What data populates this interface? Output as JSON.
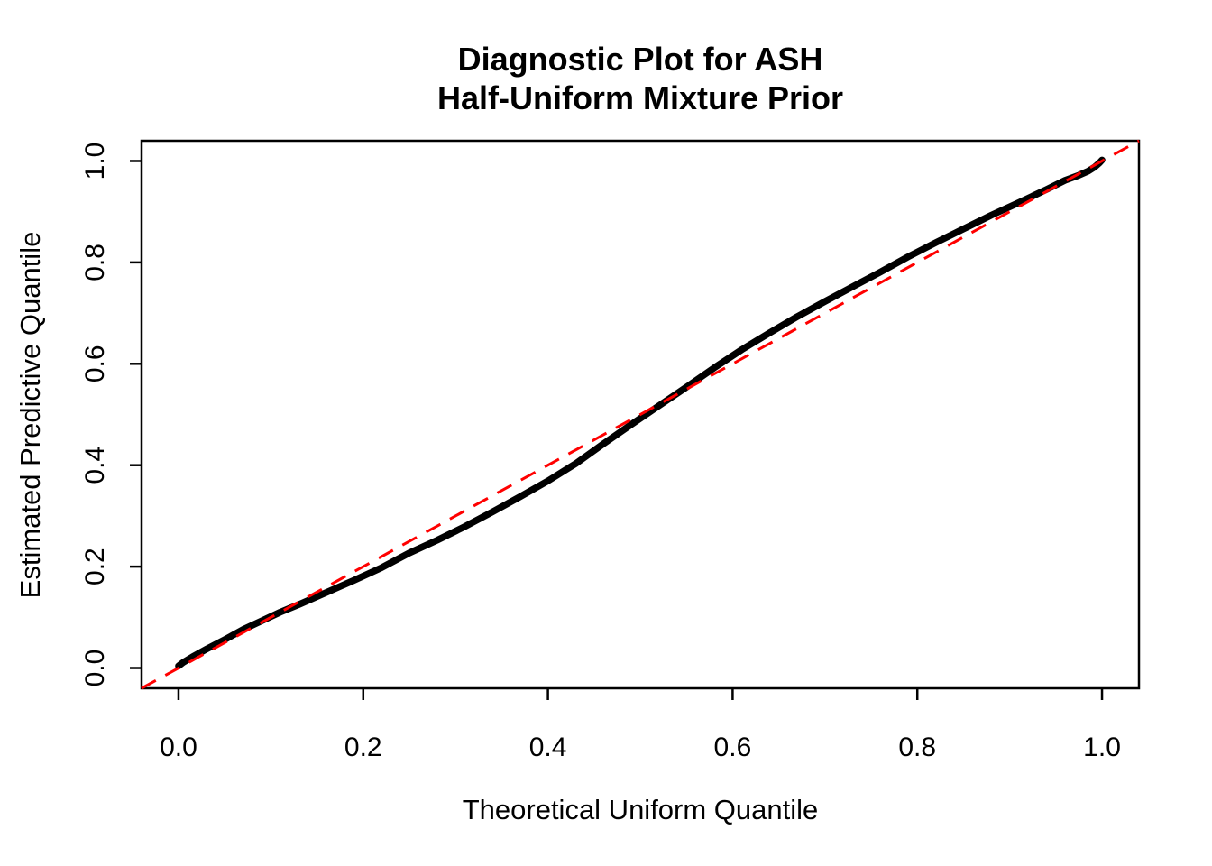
{
  "chart_data": {
    "type": "scatter",
    "title": "Diagnostic Plot for ASH\nHalf-Uniform Mixture Prior",
    "title_lines": [
      "Diagnostic Plot for ASH",
      "Half-Uniform Mixture Prior"
    ],
    "xlabel": "Theoretical Uniform Quantile",
    "ylabel": "Estimated Predictive Quantile",
    "xlim": [
      -0.04,
      1.04
    ],
    "ylim": [
      -0.04,
      1.04
    ],
    "grid": false,
    "legend": "none",
    "xticks": {
      "values": [
        0.0,
        0.2,
        0.4,
        0.6,
        0.8,
        1.0
      ],
      "labels": [
        "0.0",
        "0.2",
        "0.4",
        "0.6",
        "0.8",
        "1.0"
      ]
    },
    "yticks": {
      "values": [
        0.0,
        0.2,
        0.4,
        0.6,
        0.8,
        1.0
      ],
      "labels": [
        "0.0",
        "0.2",
        "0.4",
        "0.6",
        "0.8",
        "1.0"
      ]
    },
    "series": [
      {
        "name": "estimated-predictive-quantiles",
        "style": "thick-point-band",
        "color": "#000000",
        "points": [
          [
            0.0,
            0.004
          ],
          [
            0.005,
            0.011
          ],
          [
            0.015,
            0.022
          ],
          [
            0.03,
            0.037
          ],
          [
            0.05,
            0.056
          ],
          [
            0.07,
            0.076
          ],
          [
            0.09,
            0.093
          ],
          [
            0.11,
            0.11
          ],
          [
            0.13,
            0.125
          ],
          [
            0.16,
            0.149
          ],
          [
            0.19,
            0.173
          ],
          [
            0.22,
            0.198
          ],
          [
            0.25,
            0.227
          ],
          [
            0.28,
            0.252
          ],
          [
            0.31,
            0.279
          ],
          [
            0.34,
            0.308
          ],
          [
            0.37,
            0.338
          ],
          [
            0.4,
            0.369
          ],
          [
            0.43,
            0.403
          ],
          [
            0.46,
            0.442
          ],
          [
            0.49,
            0.48
          ],
          [
            0.52,
            0.517
          ],
          [
            0.55,
            0.554
          ],
          [
            0.58,
            0.592
          ],
          [
            0.61,
            0.628
          ],
          [
            0.64,
            0.661
          ],
          [
            0.67,
            0.693
          ],
          [
            0.7,
            0.723
          ],
          [
            0.73,
            0.752
          ],
          [
            0.76,
            0.781
          ],
          [
            0.79,
            0.811
          ],
          [
            0.82,
            0.839
          ],
          [
            0.85,
            0.866
          ],
          [
            0.88,
            0.893
          ],
          [
            0.91,
            0.918
          ],
          [
            0.94,
            0.944
          ],
          [
            0.96,
            0.962
          ],
          [
            0.975,
            0.972
          ],
          [
            0.985,
            0.98
          ],
          [
            0.992,
            0.988
          ],
          [
            0.997,
            0.996
          ],
          [
            1.0,
            1.002
          ]
        ]
      }
    ],
    "reference_line": {
      "name": "identity-line",
      "intercept": 0,
      "slope": 1,
      "style": "dashed",
      "color": "#FF0000",
      "from": [
        -0.04,
        -0.04
      ],
      "to": [
        1.04,
        1.04
      ]
    },
    "colors": {
      "curve": "#000000",
      "reference": "#FF0000",
      "axis": "#000000",
      "background": "#ffffff"
    }
  }
}
